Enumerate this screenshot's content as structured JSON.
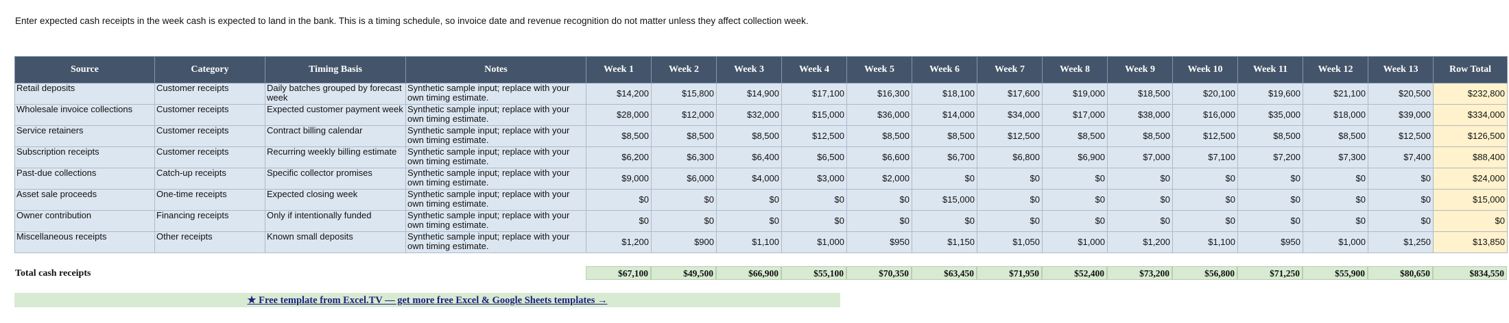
{
  "intro_text": "Enter expected cash receipts in the week cash is expected to land in the bank. This is a timing schedule, so invoice date and revenue recognition do not matter unless they affect collection week.",
  "headers": [
    "Source",
    "Category",
    "Timing Basis",
    "Notes",
    "Week 1",
    "Week 2",
    "Week 3",
    "Week 4",
    "Week 5",
    "Week 6",
    "Week 7",
    "Week 8",
    "Week 9",
    "Week 10",
    "Week 11",
    "Week 12",
    "Week 13",
    "Row Total"
  ],
  "rows": [
    {
      "source": "Retail deposits",
      "category": "Customer receipts",
      "timing": "Daily batches grouped by forecast week",
      "notes": "Synthetic sample input; replace with your own timing estimate.",
      "weeks": [
        "$14,200",
        "$15,800",
        "$14,900",
        "$17,100",
        "$16,300",
        "$18,100",
        "$17,600",
        "$19,000",
        "$18,500",
        "$20,100",
        "$19,600",
        "$21,100",
        "$20,500"
      ],
      "total": "$232,800"
    },
    {
      "source": "Wholesale invoice collections",
      "category": "Customer receipts",
      "timing": "Expected customer payment week",
      "notes": "Synthetic sample input; replace with your own timing estimate.",
      "weeks": [
        "$28,000",
        "$12,000",
        "$32,000",
        "$15,000",
        "$36,000",
        "$14,000",
        "$34,000",
        "$17,000",
        "$38,000",
        "$16,000",
        "$35,000",
        "$18,000",
        "$39,000"
      ],
      "total": "$334,000"
    },
    {
      "source": "Service retainers",
      "category": "Customer receipts",
      "timing": "Contract billing calendar",
      "notes": "Synthetic sample input; replace with your own timing estimate.",
      "weeks": [
        "$8,500",
        "$8,500",
        "$8,500",
        "$12,500",
        "$8,500",
        "$8,500",
        "$12,500",
        "$8,500",
        "$8,500",
        "$12,500",
        "$8,500",
        "$8,500",
        "$12,500"
      ],
      "total": "$126,500"
    },
    {
      "source": "Subscription receipts",
      "category": "Customer receipts",
      "timing": "Recurring weekly billing estimate",
      "notes": "Synthetic sample input; replace with your own timing estimate.",
      "weeks": [
        "$6,200",
        "$6,300",
        "$6,400",
        "$6,500",
        "$6,600",
        "$6,700",
        "$6,800",
        "$6,900",
        "$7,000",
        "$7,100",
        "$7,200",
        "$7,300",
        "$7,400"
      ],
      "total": "$88,400"
    },
    {
      "source": "Past-due collections",
      "category": "Catch-up receipts",
      "timing": "Specific collector promises",
      "notes": "Synthetic sample input; replace with your own timing estimate.",
      "weeks": [
        "$9,000",
        "$6,000",
        "$4,000",
        "$3,000",
        "$2,000",
        "$0",
        "$0",
        "$0",
        "$0",
        "$0",
        "$0",
        "$0",
        "$0"
      ],
      "total": "$24,000"
    },
    {
      "source": "Asset sale proceeds",
      "category": "One-time receipts",
      "timing": "Expected closing week",
      "notes": "Synthetic sample input; replace with your own timing estimate.",
      "weeks": [
        "$0",
        "$0",
        "$0",
        "$0",
        "$0",
        "$15,000",
        "$0",
        "$0",
        "$0",
        "$0",
        "$0",
        "$0",
        "$0"
      ],
      "total": "$15,000"
    },
    {
      "source": "Owner contribution",
      "category": "Financing receipts",
      "timing": "Only if intentionally funded",
      "notes": "Synthetic sample input; replace with your own timing estimate.",
      "weeks": [
        "$0",
        "$0",
        "$0",
        "$0",
        "$0",
        "$0",
        "$0",
        "$0",
        "$0",
        "$0",
        "$0",
        "$0",
        "$0"
      ],
      "total": "$0"
    },
    {
      "source": "Miscellaneous receipts",
      "category": "Other receipts",
      "timing": "Known small deposits",
      "notes": "Synthetic sample input; replace with your own timing estimate.",
      "weeks": [
        "$1,200",
        "$900",
        "$1,100",
        "$1,000",
        "$950",
        "$1,150",
        "$1,050",
        "$1,000",
        "$1,200",
        "$1,100",
        "$950",
        "$1,000",
        "$1,250"
      ],
      "total": "$13,850"
    }
  ],
  "totals": {
    "label": "Total cash receipts",
    "weeks": [
      "$67,100",
      "$49,500",
      "$66,900",
      "$55,100",
      "$70,350",
      "$63,450",
      "$71,950",
      "$52,400",
      "$73,200",
      "$56,800",
      "$71,250",
      "$55,900",
      "$80,650"
    ],
    "total": "$834,550"
  },
  "banner_text": "★ Free template from Excel.TV — get more free Excel & Google Sheets templates →",
  "colors": {
    "header_bg": "#44546a",
    "data_bg": "#dce6f1",
    "row_total_bg": "#fff2cc",
    "totals_bg": "#d9ead3",
    "banner_bg": "#d9ead3"
  }
}
